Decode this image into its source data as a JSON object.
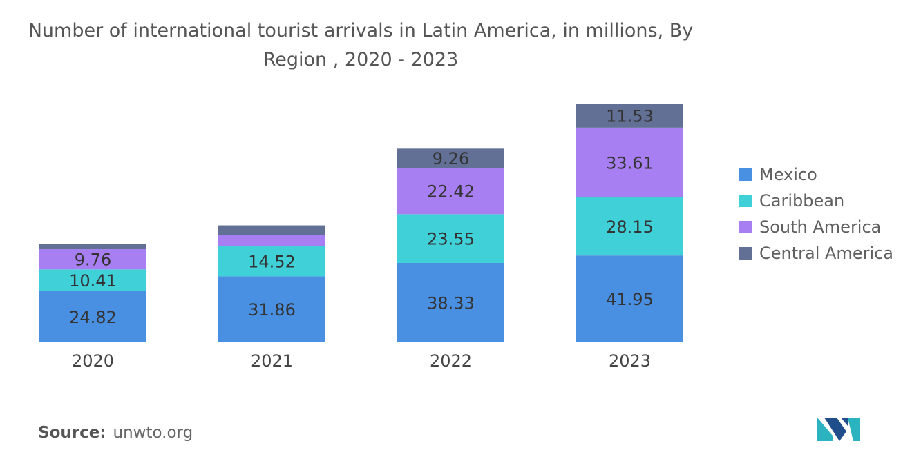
{
  "title": "Number of international tourist arrivals in Latin America, in millions, By Region , 2020 - 2023",
  "chart_data": {
    "type": "bar",
    "stacked": true,
    "title": "Number of international tourist arrivals in Latin America, in millions, By Region , 2020 - 2023",
    "xlabel": "",
    "ylabel": "",
    "categories": [
      "2020",
      "2021",
      "2022",
      "2023"
    ],
    "series": [
      {
        "name": "Mexico",
        "color": "#4a90e2",
        "values": [
          24.82,
          31.86,
          38.33,
          41.95
        ]
      },
      {
        "name": "Caribbean",
        "color": "#3fd0d8",
        "values": [
          10.41,
          14.52,
          23.55,
          28.15
        ]
      },
      {
        "name": "South America",
        "color": "#a77ff2",
        "values": [
          9.76,
          5.6,
          22.42,
          33.61
        ]
      },
      {
        "name": "Central America",
        "color": "#627096",
        "values": [
          2.5,
          4.5,
          9.26,
          11.53
        ]
      }
    ],
    "data_labels": [
      [
        "24.82",
        "31.86",
        "38.33",
        "41.95"
      ],
      [
        "10.41",
        "14.52",
        "23.55",
        "28.15"
      ],
      [
        "9.76",
        "",
        "22.42",
        "33.61"
      ],
      [
        "",
        "",
        "9.26",
        "11.53"
      ]
    ],
    "grid": false,
    "legend_position": "right"
  },
  "source": {
    "label": "Source:",
    "value": "unwto.org"
  },
  "logo": {
    "name": "mordor-intelligence-logo",
    "colors": [
      "#2bb3c0",
      "#1f4e8a"
    ]
  }
}
